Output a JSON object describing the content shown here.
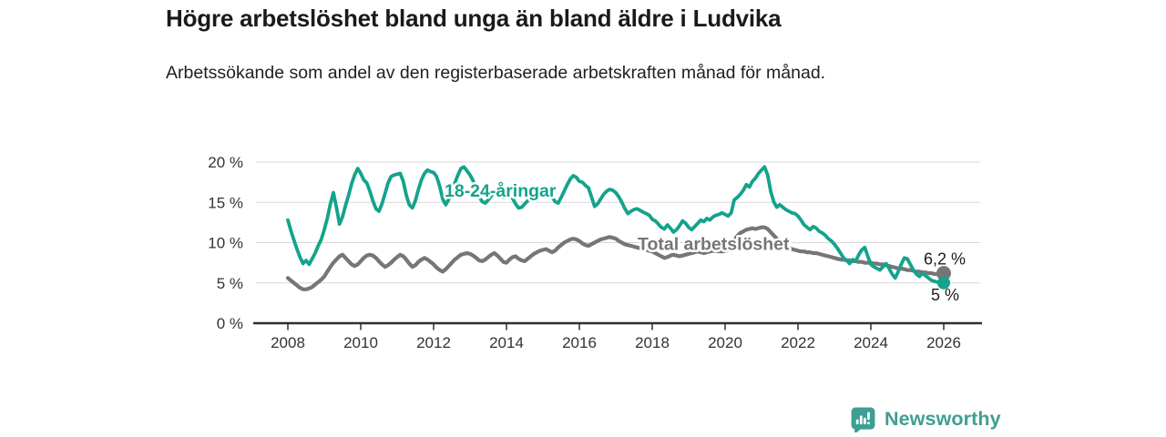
{
  "header": {
    "title": "Högre arbetslöshet bland unga än bland äldre i Ludvika",
    "subtitle": "Arbetssökande som andel av den registerbaserade arbetskraften månad för månad."
  },
  "chart_data": {
    "type": "line",
    "title": "Högre arbetslöshet bland unga än bland äldre i Ludvika",
    "subtitle": "Arbetssökande som andel av den registerbaserade arbetskraften månad för månad.",
    "xlabel": "",
    "ylabel": "",
    "grid": "horizontal",
    "legend_position": "inline-labels",
    "x_start_year": 2008,
    "x_start_month": 1,
    "frequency": "monthly",
    "xlim": [
      2007.05,
      2027.05
    ],
    "ylim": [
      0,
      20
    ],
    "y_ticks": [
      0,
      5,
      10,
      15,
      20
    ],
    "y_tick_labels": [
      "0 %",
      "5 %",
      "10 %",
      "15 %",
      "20 %"
    ],
    "x_ticks": [
      2008,
      2010,
      2012,
      2014,
      2016,
      2018,
      2020,
      2022,
      2024,
      2026
    ],
    "x_tick_labels": [
      "2008",
      "2010",
      "2012",
      "2014",
      "2016",
      "2018",
      "2020",
      "2022",
      "2024",
      "2026"
    ],
    "axis_color": "#2e2e2e",
    "gridline_color": "#d8d8d8",
    "series": [
      {
        "id": "18-24",
        "name": "18-24-åringar",
        "color": "#14a38b",
        "width": 3.8,
        "dot_radius": 7,
        "end_value_label": "5 %",
        "values": [
          12.8,
          11.5,
          10.3,
          9.2,
          8.2,
          7.4,
          7.8,
          7.3,
          8.0,
          8.7,
          9.6,
          10.4,
          11.6,
          13.0,
          14.8,
          16.2,
          14.4,
          12.3,
          13.2,
          14.6,
          15.9,
          17.3,
          18.4,
          19.2,
          18.6,
          17.8,
          17.4,
          16.4,
          15.2,
          14.2,
          13.9,
          14.8,
          16.1,
          17.4,
          18.2,
          18.4,
          18.5,
          18.6,
          17.6,
          15.9,
          14.7,
          14.3,
          15.2,
          16.6,
          17.8,
          18.6,
          19.0,
          18.8,
          18.7,
          18.2,
          17.0,
          15.4,
          14.7,
          15.4,
          16.3,
          17.4,
          18.4,
          19.2,
          19.4,
          18.9,
          18.4,
          17.7,
          16.7,
          15.7,
          15.1,
          14.9,
          15.3,
          15.8,
          16.2,
          16.0,
          15.8,
          15.6,
          15.7,
          15.9,
          15.5,
          14.8,
          14.3,
          14.4,
          14.8,
          15.2,
          15.6,
          15.9,
          16.1,
          16.3,
          16.6,
          16.8,
          16.4,
          15.7,
          15.1,
          14.9,
          15.6,
          16.4,
          17.2,
          17.9,
          18.3,
          18.1,
          17.6,
          17.5,
          17.1,
          16.8,
          15.7,
          14.5,
          14.8,
          15.4,
          16.0,
          16.4,
          16.6,
          16.5,
          16.2,
          15.7,
          15.0,
          14.2,
          13.6,
          13.9,
          14.1,
          14.2,
          14.0,
          13.8,
          13.6,
          13.4,
          12.9,
          12.7,
          12.3,
          11.9,
          11.7,
          12.2,
          11.8,
          11.3,
          11.6,
          12.1,
          12.7,
          12.4,
          11.9,
          11.6,
          12.0,
          12.4,
          12.8,
          12.6,
          13.0,
          12.8,
          13.2,
          13.4,
          13.5,
          13.7,
          13.5,
          13.3,
          13.7,
          15.3,
          15.6,
          16.0,
          16.5,
          17.2,
          16.9,
          17.6,
          18.0,
          18.6,
          19.0,
          19.4,
          18.4,
          16.4,
          15.1,
          14.4,
          14.7,
          14.4,
          14.1,
          13.9,
          13.7,
          13.6,
          13.3,
          12.8,
          12.2,
          11.9,
          11.6,
          12.0,
          11.8,
          11.4,
          11.2,
          10.9,
          10.5,
          10.2,
          9.8,
          9.3,
          8.7,
          8.1,
          7.8,
          7.4,
          7.9,
          7.7,
          8.5,
          9.1,
          9.4,
          8.3,
          7.3,
          7.0,
          6.8,
          6.6,
          7.0,
          7.4,
          6.8,
          6.1,
          5.6,
          6.4,
          7.3,
          8.1,
          8.0,
          7.3,
          6.6,
          6.1,
          5.8,
          6.2,
          5.9,
          5.6,
          5.3,
          5.2,
          5.1,
          4.9,
          5.0
        ]
      },
      {
        "id": "total",
        "name": "Total arbetslöshet",
        "color": "#767676",
        "width": 4.2,
        "dot_radius": 8,
        "end_value_label": "6,2 %",
        "values": [
          5.6,
          5.3,
          5.0,
          4.7,
          4.4,
          4.2,
          4.2,
          4.3,
          4.5,
          4.8,
          5.1,
          5.4,
          5.8,
          6.4,
          7.0,
          7.5,
          7.9,
          8.3,
          8.5,
          8.1,
          7.7,
          7.3,
          7.1,
          7.3,
          7.7,
          8.1,
          8.4,
          8.5,
          8.4,
          8.1,
          7.7,
          7.3,
          7.0,
          7.2,
          7.5,
          7.9,
          8.2,
          8.5,
          8.3,
          7.9,
          7.4,
          7.0,
          7.2,
          7.6,
          7.9,
          8.1,
          7.9,
          7.6,
          7.3,
          6.9,
          6.6,
          6.4,
          6.7,
          7.1,
          7.5,
          7.9,
          8.2,
          8.5,
          8.6,
          8.7,
          8.6,
          8.4,
          8.1,
          7.8,
          7.7,
          7.9,
          8.2,
          8.5,
          8.7,
          8.4,
          8.0,
          7.6,
          7.5,
          7.9,
          8.2,
          8.3,
          8.0,
          7.8,
          7.7,
          8.0,
          8.3,
          8.6,
          8.8,
          9.0,
          9.1,
          9.2,
          9.0,
          8.8,
          9.0,
          9.4,
          9.7,
          10.0,
          10.2,
          10.4,
          10.5,
          10.4,
          10.2,
          9.9,
          9.7,
          9.6,
          9.8,
          10.0,
          10.2,
          10.4,
          10.5,
          10.6,
          10.7,
          10.6,
          10.5,
          10.2,
          10.0,
          9.8,
          9.7,
          9.6,
          9.5,
          9.4,
          9.3,
          9.2,
          9.1,
          9.0,
          8.9,
          8.7,
          8.5,
          8.3,
          8.1,
          8.2,
          8.4,
          8.5,
          8.4,
          8.3,
          8.4,
          8.5,
          8.6,
          8.7,
          8.8,
          8.9,
          8.8,
          8.7,
          8.8,
          8.9,
          9.0,
          9.0,
          8.9,
          8.9,
          9.0,
          9.1,
          9.5,
          10.3,
          10.8,
          11.2,
          11.4,
          11.6,
          11.7,
          11.8,
          11.7,
          11.8,
          11.9,
          11.9,
          11.7,
          11.3,
          10.9,
          10.5,
          10.2,
          9.9,
          9.6,
          9.4,
          9.2,
          9.1,
          9.0,
          8.9,
          8.9,
          8.8,
          8.8,
          8.7,
          8.7,
          8.6,
          8.5,
          8.4,
          8.3,
          8.2,
          8.1,
          8.0,
          7.9,
          7.9,
          7.8,
          7.8,
          7.7,
          7.7,
          7.6,
          7.6,
          7.5,
          7.5,
          7.5,
          7.4,
          7.4,
          7.3,
          7.3,
          7.2,
          7.1,
          7.0,
          6.9,
          6.8,
          6.8,
          6.7,
          6.6,
          6.6,
          6.5,
          6.4,
          6.4,
          6.3,
          6.3,
          6.2,
          6.2,
          6.1,
          6.1,
          6.1,
          6.2
        ]
      }
    ],
    "annotations": [
      {
        "text": "18-24-åringar",
        "x": 2012.3,
        "y": 15.7,
        "color": "#14a38b",
        "role": "series-label",
        "anchor": "start"
      },
      {
        "text": "Total arbetslöshet",
        "x": 2017.6,
        "y": 9.1,
        "color": "#767676",
        "role": "series-label",
        "anchor": "start"
      },
      {
        "text": "6,2 %",
        "x": 2025.45,
        "y": 7.3,
        "color": "#1d1d1d",
        "role": "end-value-label",
        "anchor": "start"
      },
      {
        "text": "5 %",
        "x": 2025.65,
        "y": 2.85,
        "color": "#1d1d1d",
        "role": "end-value-label",
        "anchor": "start"
      }
    ]
  },
  "footer": {
    "brand": "Newsworthy",
    "logo_icon": "bar-chart-speech-bubble-icon",
    "brand_color": "#3f9e94"
  }
}
